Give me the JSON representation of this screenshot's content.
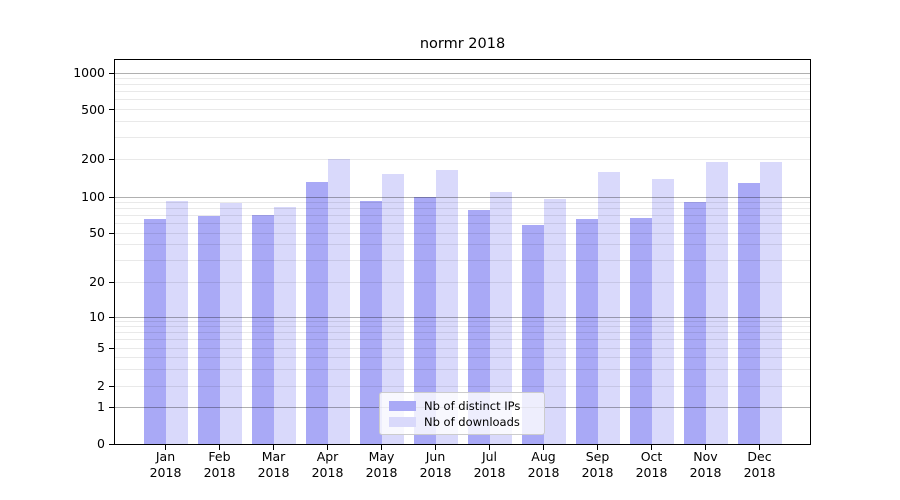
{
  "figure": {
    "title": "normr 2018",
    "background_color": "#ffffff",
    "axis_border_color": "#000000",
    "major_grid_color": "#b0b0b0",
    "minor_grid_color": "#e9e9e9"
  },
  "legend": {
    "items": [
      {
        "label": "Nb of distinct IPs",
        "color": "#a9a9f6"
      },
      {
        "label": "Nb of downloads",
        "color": "#d9d9fb"
      }
    ]
  },
  "axis": {
    "ytick_labels": [
      "0",
      "1",
      "2",
      "5",
      "10",
      "20",
      "50",
      "100",
      "200",
      "500",
      "1000"
    ],
    "xtick_line2": "2018"
  },
  "chart_data": {
    "type": "bar",
    "title": "normr 2018",
    "scale": "symlog",
    "grid": true,
    "legend_position": "lower center",
    "categories": [
      "Jan 2018",
      "Feb 2018",
      "Mar 2018",
      "Apr 2018",
      "May 2018",
      "Jun 2018",
      "Jul 2018",
      "Aug 2018",
      "Sep 2018",
      "Oct 2018",
      "Nov 2018",
      "Dec 2018"
    ],
    "series": [
      {
        "name": "Nb of distinct IPs",
        "color": "#a9a9f6",
        "values": [
          66,
          70,
          71,
          132,
          92,
          100,
          78,
          58,
          66,
          67,
          91,
          130
        ]
      },
      {
        "name": "Nb of downloads",
        "color": "#d9d9fb",
        "values": [
          92,
          89,
          83,
          200,
          151,
          163,
          110,
          97,
          159,
          140,
          190,
          190
        ]
      }
    ],
    "yticks": [
      0,
      1,
      2,
      5,
      10,
      20,
      50,
      100,
      200,
      500,
      1000
    ],
    "ylim": [
      0,
      1000
    ],
    "xlabel": "",
    "ylabel": ""
  }
}
